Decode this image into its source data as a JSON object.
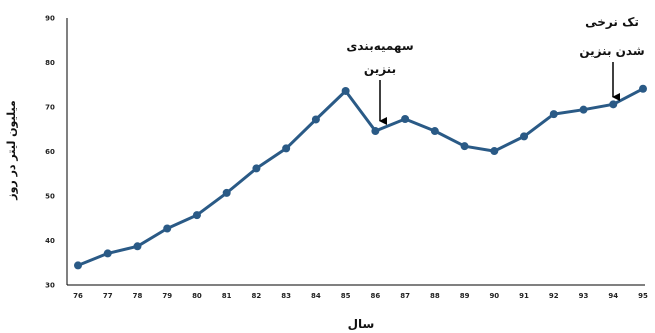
{
  "chart_data": {
    "type": "line",
    "x": [
      "76",
      "77",
      "78",
      "79",
      "80",
      "81",
      "82",
      "83",
      "84",
      "85",
      "86",
      "87",
      "88",
      "89",
      "90",
      "91",
      "92",
      "93",
      "94",
      "95"
    ],
    "series": [
      {
        "values": [
          34.4,
          37.1,
          38.7,
          42.7,
          45.7,
          50.7,
          56.2,
          60.7,
          67.2,
          73.6,
          64.6,
          67.3,
          64.6,
          61.2,
          60.1,
          63.4,
          68.4,
          69.4,
          70.6,
          74.1
        ]
      }
    ],
    "xlabel": "سال",
    "ylabel": "میلیون لیتر در روز",
    "ylim": [
      30,
      90
    ],
    "yticks": [
      30,
      40,
      50,
      60,
      70,
      80,
      90
    ],
    "grid": false,
    "colors": {
      "line": "#2a5a86",
      "axis": "#000000"
    },
    "annotations": [
      {
        "x": "86",
        "lines": [
          "سهمیه‌بندی",
          "بنزین"
        ]
      },
      {
        "x": "94",
        "lines": [
          "تک نرخی",
          "شدن بنزین"
        ]
      }
    ]
  }
}
